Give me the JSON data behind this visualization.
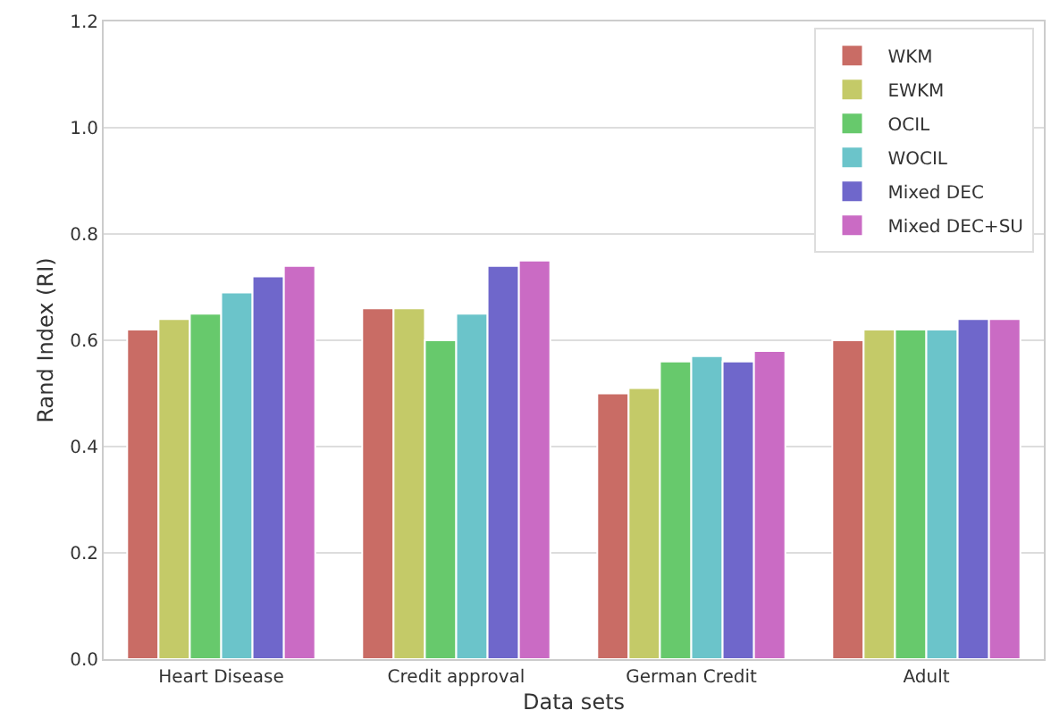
{
  "chart_data": {
    "type": "bar",
    "xlabel": "Data sets",
    "ylabel": "Rand Index (RI)",
    "categories": [
      "Heart Disease",
      "Credit approval",
      "German Credit",
      "Adult"
    ],
    "series": [
      {
        "name": "WKM",
        "color": "#c96c65",
        "values": [
          0.62,
          0.66,
          0.5,
          0.6
        ]
      },
      {
        "name": "EWKM",
        "color": "#c4ca68",
        "values": [
          0.64,
          0.66,
          0.51,
          0.62
        ]
      },
      {
        "name": "OCIL",
        "color": "#67c96c",
        "values": [
          0.65,
          0.6,
          0.56,
          0.62
        ]
      },
      {
        "name": "WOCIL",
        "color": "#6bc4ca",
        "values": [
          0.69,
          0.65,
          0.57,
          0.62
        ]
      },
      {
        "name": "Mixed DEC",
        "color": "#6f67cb",
        "values": [
          0.72,
          0.74,
          0.56,
          0.64
        ]
      },
      {
        "name": "Mixed DEC+SU",
        "color": "#ca6bc4",
        "values": [
          0.74,
          0.75,
          0.58,
          0.64
        ]
      }
    ],
    "ylim": [
      0,
      1.2
    ],
    "yticks": [
      {
        "value": 0,
        "label": "0.0"
      },
      {
        "value": 0.2,
        "label": "0.2"
      },
      {
        "value": 0.4,
        "label": "0.4"
      },
      {
        "value": 0.6,
        "label": "0.6"
      },
      {
        "value": 0.8,
        "label": "0.8"
      },
      {
        "value": 1.0,
        "label": "1.0"
      },
      {
        "value": 1.2,
        "label": "1.2"
      }
    ],
    "grid": "y",
    "legend": "top right"
  }
}
